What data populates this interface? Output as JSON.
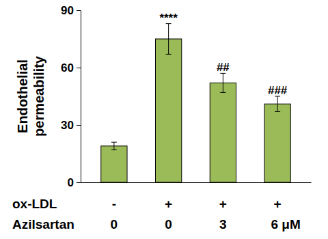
{
  "chart_data": {
    "type": "bar",
    "ylabel": "Endothelial permeability",
    "categories": [
      null,
      null,
      null,
      null
    ],
    "values": [
      19,
      75,
      52,
      41
    ],
    "errors": [
      2,
      8,
      5,
      4
    ],
    "significance": [
      null,
      "****",
      "##",
      "###"
    ],
    "condition_rows": [
      {
        "label": "ox-LDL",
        "values": [
          "-",
          "+",
          "+",
          "+"
        ]
      },
      {
        "label": "Azilsartan",
        "values": [
          "0",
          "0",
          "3",
          "6 μM"
        ]
      }
    ],
    "color": "#9bbb59",
    "ylim": [
      0,
      90
    ],
    "yticks": [
      0,
      30,
      60,
      90
    ],
    "grid": false
  }
}
